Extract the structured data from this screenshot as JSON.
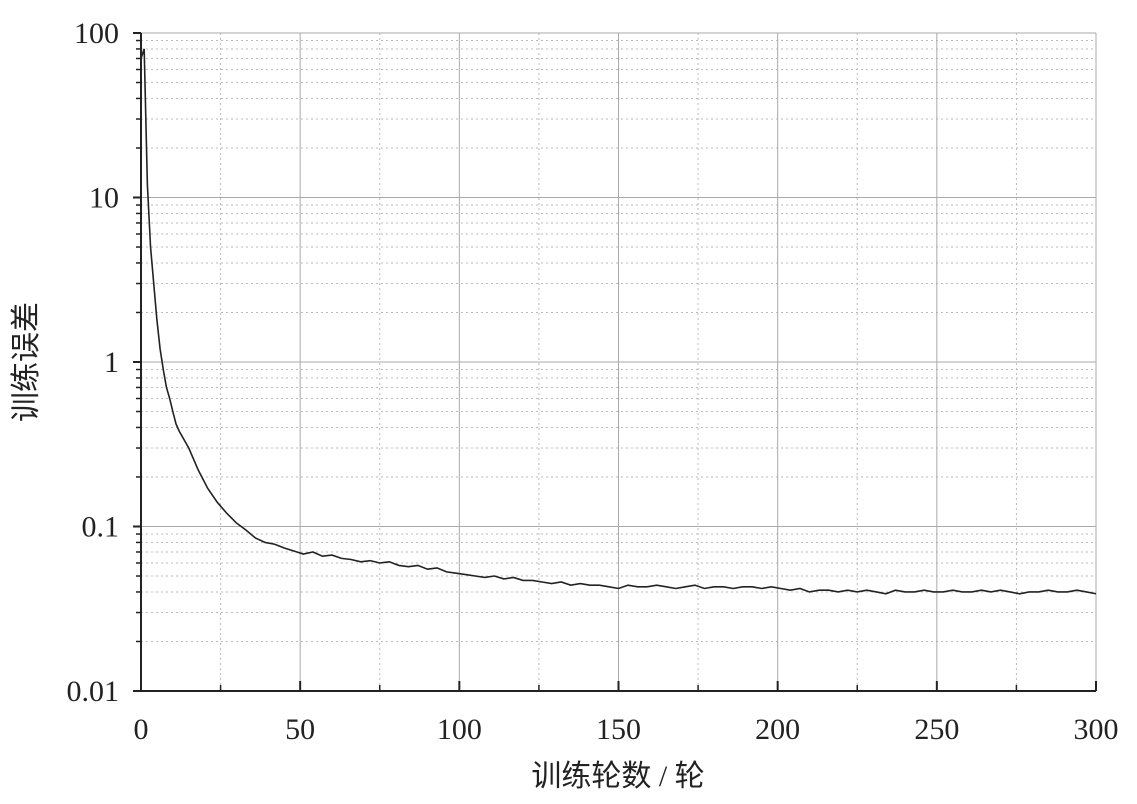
{
  "chart_data": {
    "type": "line",
    "xlabel": "训练轮数 / 轮",
    "ylabel": "训练误差",
    "log_y": true,
    "grid": true,
    "color": "#222222",
    "xlim": [
      0,
      300
    ],
    "xticks": [
      0,
      50,
      100,
      150,
      200,
      250,
      300
    ],
    "xminorticks": [
      25,
      75,
      125,
      175,
      225,
      275
    ],
    "ylim": [
      0.01,
      100
    ],
    "yticks": [
      0.01,
      0.1,
      1,
      10,
      100
    ],
    "yminorticks": [
      0.02,
      0.03,
      0.04,
      0.05,
      0.06,
      0.07,
      0.08,
      0.09,
      0.2,
      0.3,
      0.4,
      0.5,
      0.6,
      0.7,
      0.8,
      0.9,
      2,
      3,
      4,
      5,
      6,
      7,
      8,
      9,
      20,
      30,
      40,
      50,
      60,
      70,
      80,
      90
    ],
    "x": [
      0,
      1,
      2,
      3,
      4,
      5,
      6,
      7,
      8,
      9,
      10,
      11,
      12,
      15,
      18,
      21,
      24,
      27,
      30,
      33,
      36,
      39,
      42,
      45,
      48,
      51,
      54,
      57,
      60,
      63,
      66,
      69,
      72,
      75,
      78,
      81,
      84,
      87,
      90,
      93,
      96,
      99,
      102,
      105,
      108,
      111,
      114,
      117,
      120,
      123,
      126,
      129,
      132,
      135,
      138,
      141,
      144,
      147,
      150,
      153,
      156,
      159,
      162,
      165,
      168,
      171,
      174,
      177,
      180,
      183,
      186,
      189,
      192,
      195,
      198,
      201,
      204,
      207,
      210,
      213,
      216,
      219,
      222,
      225,
      228,
      231,
      234,
      237,
      240,
      243,
      246,
      249,
      252,
      255,
      258,
      261,
      264,
      267,
      270,
      273,
      276,
      279,
      282,
      285,
      288,
      291,
      294,
      297,
      300
    ],
    "values": [
      70,
      80,
      12,
      5,
      3,
      1.8,
      1.2,
      0.9,
      0.7,
      0.6,
      0.5,
      0.42,
      0.38,
      0.3,
      0.22,
      0.17,
      0.14,
      0.12,
      0.105,
      0.095,
      0.085,
      0.08,
      0.078,
      0.074,
      0.071,
      0.068,
      0.07,
      0.066,
      0.067,
      0.064,
      0.063,
      0.061,
      0.062,
      0.06,
      0.061,
      0.058,
      0.057,
      0.058,
      0.055,
      0.056,
      0.053,
      0.052,
      0.051,
      0.05,
      0.049,
      0.05,
      0.048,
      0.049,
      0.047,
      0.047,
      0.046,
      0.045,
      0.046,
      0.044,
      0.045,
      0.044,
      0.044,
      0.043,
      0.042,
      0.044,
      0.043,
      0.043,
      0.044,
      0.043,
      0.042,
      0.043,
      0.044,
      0.042,
      0.043,
      0.043,
      0.042,
      0.043,
      0.043,
      0.042,
      0.043,
      0.042,
      0.041,
      0.042,
      0.04,
      0.041,
      0.041,
      0.04,
      0.041,
      0.04,
      0.041,
      0.04,
      0.039,
      0.041,
      0.04,
      0.04,
      0.041,
      0.04,
      0.04,
      0.041,
      0.04,
      0.04,
      0.041,
      0.04,
      0.041,
      0.04,
      0.039,
      0.04,
      0.04,
      0.041,
      0.04,
      0.04,
      0.041,
      0.04,
      0.039
    ]
  }
}
